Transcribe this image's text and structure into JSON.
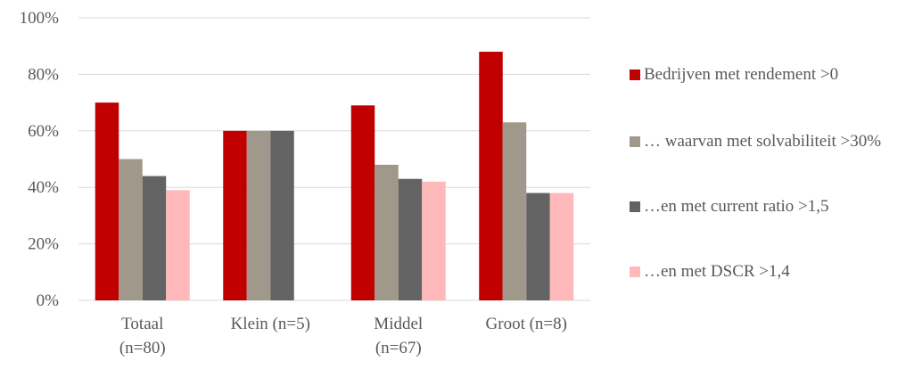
{
  "chart_data": {
    "type": "bar",
    "categories": [
      [
        "Totaal",
        "(n=80)"
      ],
      [
        "Klein (n=5)"
      ],
      [
        "Middel",
        "(n=67)"
      ],
      [
        "Groot (n=8)"
      ]
    ],
    "series": [
      {
        "name": "Bedrijven met rendement >0",
        "color": "#C00000",
        "values": [
          70,
          60,
          69,
          88
        ]
      },
      {
        "name": "… waarvan met solvabiliteit >30%",
        "color": "#A0988A",
        "values": [
          50,
          60,
          48,
          63
        ]
      },
      {
        "name": "…en met current ratio >1,5",
        "color": "#636363",
        "values": [
          44,
          60,
          43,
          38
        ]
      },
      {
        "name": "…en met DSCR >1,4",
        "color": "#FFB9BA",
        "values": [
          39,
          null,
          42,
          38
        ]
      }
    ],
    "ylim": [
      0,
      100
    ],
    "yticks": [
      "0%",
      "20%",
      "40%",
      "60%",
      "80%",
      "100%"
    ],
    "grid": true,
    "legend_position": "right"
  }
}
